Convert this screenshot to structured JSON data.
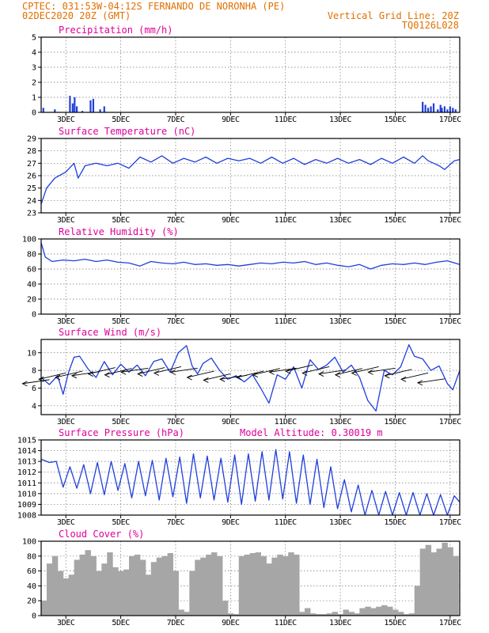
{
  "header": {
    "line1_left": "CPTEC:   031:53W-04:12S  FERNANDO DE NORONHA (PE)",
    "line2_left": "02DEC2020 20Z (GMT)",
    "line2_right": "Vertical Grid Line: 20Z",
    "line3_right": "TQ0126L028"
  },
  "colors": {
    "header": "#e07000",
    "title": "#e0009a",
    "series": "#1f3fdc",
    "cloud": "#a6a6a6"
  },
  "chart_data": [
    {
      "type": "bar",
      "title": "Precipitation (mm/h)",
      "ylim": [
        0,
        5
      ],
      "yticks": [
        0,
        1,
        2,
        3,
        4,
        5
      ],
      "xlim": [
        0,
        15.25
      ],
      "xticks": [
        0.9,
        2.9,
        4.9,
        6.9,
        8.9,
        10.9,
        12.9,
        14.9
      ],
      "xtick_labels": [
        "3DEC",
        "5DEC",
        "7DEC",
        "9DEC",
        "11DEC",
        "13DEC",
        "15DEC",
        "17DEC"
      ],
      "series": [
        {
          "color": "#1f3fdc",
          "x": [
            0.08,
            0.5,
            1.05,
            1.15,
            1.22,
            1.3,
            1.5,
            1.8,
            1.9,
            2.15,
            2.3,
            13.9,
            14.0,
            14.1,
            14.2,
            14.3,
            14.45,
            14.55,
            14.6,
            14.7,
            14.8,
            14.9,
            15.0,
            15.1
          ],
          "values": [
            0.3,
            0.2,
            1.1,
            0.6,
            1.0,
            0.4,
            0.1,
            0.8,
            0.9,
            0.2,
            0.4,
            0.7,
            0.5,
            0.3,
            0.4,
            0.6,
            0.2,
            0.5,
            0.3,
            0.4,
            0.2,
            0.4,
            0.3,
            0.2
          ]
        }
      ]
    },
    {
      "type": "line",
      "title": "Surface Temperature (nC)",
      "ylim": [
        23,
        29
      ],
      "yticks": [
        23,
        24,
        25,
        26,
        27,
        28,
        29
      ],
      "xlim": [
        0,
        15.25
      ],
      "xticks": [
        0.9,
        2.9,
        4.9,
        6.9,
        8.9,
        10.9,
        12.9,
        14.9
      ],
      "xtick_labels": [
        "3DEC",
        "5DEC",
        "7DEC",
        "9DEC",
        "11DEC",
        "13DEC",
        "15DEC",
        "17DEC"
      ],
      "series": [
        {
          "color": "#1f3fdc",
          "x": [
            0.0,
            0.2,
            0.5,
            0.9,
            1.2,
            1.35,
            1.6,
            2.0,
            2.4,
            2.8,
            3.2,
            3.6,
            4.0,
            4.4,
            4.8,
            5.2,
            5.6,
            6.0,
            6.4,
            6.8,
            7.2,
            7.6,
            8.0,
            8.4,
            8.8,
            9.2,
            9.6,
            10.0,
            10.4,
            10.8,
            11.2,
            11.6,
            12.0,
            12.4,
            12.8,
            13.2,
            13.6,
            13.9,
            14.1,
            14.3,
            14.5,
            14.7,
            14.9,
            15.05,
            15.25
          ],
          "values": [
            23.7,
            25.0,
            25.8,
            26.3,
            27.0,
            25.8,
            26.8,
            27.0,
            26.8,
            27.0,
            26.6,
            27.5,
            27.1,
            27.6,
            27.0,
            27.4,
            27.1,
            27.5,
            27.0,
            27.4,
            27.2,
            27.4,
            27.0,
            27.5,
            27.0,
            27.4,
            26.9,
            27.3,
            27.0,
            27.4,
            27.0,
            27.3,
            26.9,
            27.4,
            27.0,
            27.5,
            27.0,
            27.6,
            27.2,
            27.0,
            26.8,
            26.5,
            26.9,
            27.2,
            27.3
          ]
        }
      ]
    },
    {
      "type": "line",
      "title": "Relative Humidity (%)",
      "ylim": [
        0,
        100
      ],
      "yticks": [
        0,
        20,
        40,
        60,
        80,
        100
      ],
      "xlim": [
        0,
        15.25
      ],
      "xticks": [
        0.9,
        2.9,
        4.9,
        6.9,
        8.9,
        10.9,
        12.9,
        14.9
      ],
      "xtick_labels": [
        "3DEC",
        "5DEC",
        "7DEC",
        "9DEC",
        "11DEC",
        "13DEC",
        "15DEC",
        "17DEC"
      ],
      "series": [
        {
          "color": "#1f3fdc",
          "x": [
            0.0,
            0.15,
            0.4,
            0.8,
            1.2,
            1.6,
            2.0,
            2.4,
            2.8,
            3.2,
            3.6,
            4.0,
            4.4,
            4.8,
            5.2,
            5.6,
            6.0,
            6.4,
            6.8,
            7.2,
            7.6,
            8.0,
            8.4,
            8.8,
            9.2,
            9.6,
            10.0,
            10.4,
            10.8,
            11.2,
            11.6,
            12.0,
            12.4,
            12.8,
            13.2,
            13.6,
            14.0,
            14.4,
            14.8,
            15.25
          ],
          "values": [
            95,
            76,
            70,
            72,
            71,
            73,
            70,
            72,
            69,
            68,
            64,
            70,
            68,
            67,
            69,
            66,
            67,
            65,
            66,
            64,
            66,
            68,
            67,
            69,
            68,
            70,
            66,
            68,
            65,
            63,
            66,
            60,
            65,
            67,
            66,
            68,
            66,
            69,
            71,
            66
          ]
        }
      ]
    },
    {
      "type": "line",
      "title": "Surface Wind (m/s)",
      "ylim": [
        3,
        11.5
      ],
      "yticks": [
        4,
        6,
        8,
        10
      ],
      "xlim": [
        0,
        15.25
      ],
      "xticks": [
        0.9,
        2.9,
        4.9,
        6.9,
        8.9,
        10.9,
        12.9,
        14.9
      ],
      "xtick_labels": [
        "3DEC",
        "5DEC",
        "7DEC",
        "9DEC",
        "11DEC",
        "13DEC",
        "15DEC",
        "17DEC"
      ],
      "series": [
        {
          "color": "#1f3fdc",
          "x": [
            0.0,
            0.3,
            0.6,
            0.8,
            1.0,
            1.2,
            1.4,
            1.7,
            2.0,
            2.3,
            2.6,
            2.9,
            3.2,
            3.5,
            3.8,
            4.1,
            4.4,
            4.7,
            5.0,
            5.3,
            5.5,
            5.7,
            5.9,
            6.2,
            6.5,
            6.8,
            7.1,
            7.4,
            7.7,
            8.0,
            8.3,
            8.6,
            8.9,
            9.2,
            9.5,
            9.8,
            10.1,
            10.4,
            10.7,
            11.0,
            11.3,
            11.6,
            11.9,
            12.2,
            12.5,
            12.8,
            13.1,
            13.4,
            13.6,
            13.9,
            14.2,
            14.5,
            14.8,
            15.0,
            15.25
          ],
          "values": [
            7.2,
            6.4,
            7.4,
            5.3,
            7.8,
            9.5,
            9.6,
            8.2,
            7.2,
            9.0,
            7.5,
            8.7,
            7.8,
            8.6,
            7.4,
            9.0,
            9.3,
            7.8,
            10.0,
            10.8,
            8.5,
            7.6,
            8.8,
            9.4,
            8.0,
            7.0,
            7.4,
            6.7,
            7.5,
            6.0,
            4.3,
            7.5,
            7.0,
            8.4,
            6.0,
            9.2,
            8.1,
            8.6,
            9.5,
            7.8,
            8.6,
            7.2,
            4.6,
            3.4,
            8.0,
            7.5,
            8.4,
            10.9,
            9.6,
            9.3,
            8.0,
            8.5,
            6.5,
            5.8,
            8.0
          ]
        }
      ]
    },
    {
      "type": "line",
      "title": "Surface Pressure (hPa)",
      "annotation": "Model Altitude: 0.30019 m",
      "ylim": [
        1008,
        1015
      ],
      "yticks": [
        1008,
        1009,
        1010,
        1011,
        1012,
        1013,
        1014,
        1015
      ],
      "xlim": [
        0,
        15.25
      ],
      "xticks": [
        0.9,
        2.9,
        4.9,
        6.9,
        8.9,
        10.9,
        12.9,
        14.9
      ],
      "xtick_labels": [
        "3DEC",
        "5DEC",
        "7DEC",
        "9DEC",
        "11DEC",
        "13DEC",
        "15DEC",
        "17DEC"
      ],
      "series": [
        {
          "color": "#1f3fdc",
          "x": [
            0.0,
            0.3,
            0.55,
            0.8,
            1.05,
            1.3,
            1.55,
            1.8,
            2.05,
            2.3,
            2.55,
            2.8,
            3.05,
            3.3,
            3.55,
            3.8,
            4.05,
            4.3,
            4.55,
            4.8,
            5.05,
            5.3,
            5.55,
            5.8,
            6.05,
            6.3,
            6.55,
            6.8,
            7.05,
            7.3,
            7.55,
            7.8,
            8.05,
            8.3,
            8.55,
            8.8,
            9.05,
            9.3,
            9.55,
            9.8,
            10.05,
            10.3,
            10.55,
            10.8,
            11.05,
            11.3,
            11.55,
            11.8,
            12.05,
            12.3,
            12.55,
            12.8,
            13.05,
            13.3,
            13.55,
            13.8,
            14.05,
            14.3,
            14.55,
            14.8,
            15.05,
            15.25
          ],
          "values": [
            1013.2,
            1012.9,
            1013.0,
            1010.6,
            1012.5,
            1010.5,
            1012.7,
            1010.0,
            1012.9,
            1009.9,
            1013.0,
            1010.3,
            1012.8,
            1009.6,
            1013.0,
            1009.8,
            1013.1,
            1009.4,
            1013.3,
            1009.7,
            1013.4,
            1009.1,
            1013.7,
            1009.6,
            1013.5,
            1009.4,
            1013.3,
            1009.2,
            1013.6,
            1009.0,
            1013.7,
            1009.3,
            1013.9,
            1009.4,
            1014.1,
            1009.5,
            1013.9,
            1009.1,
            1013.6,
            1009.0,
            1013.2,
            1008.7,
            1012.5,
            1008.6,
            1011.3,
            1008.3,
            1010.8,
            1008.0,
            1010.3,
            1008.0,
            1010.2,
            1008.0,
            1010.1,
            1008.0,
            1010.1,
            1008.0,
            1010.0,
            1008.0,
            1009.9,
            1008.0,
            1009.8,
            1009.2
          ]
        }
      ]
    },
    {
      "type": "bar",
      "title": "Cloud Cover (%)",
      "ylim": [
        0,
        100
      ],
      "yticks": [
        0,
        20,
        40,
        60,
        80,
        100
      ],
      "xlim": [
        0,
        15.25
      ],
      "xticks": [
        0.9,
        2.9,
        4.9,
        6.9,
        8.9,
        10.9,
        12.9,
        14.9
      ],
      "xtick_labels": [
        "3DEC",
        "5DEC",
        "7DEC",
        "9DEC",
        "11DEC",
        "13DEC",
        "15DEC",
        "17DEC"
      ],
      "series": [
        {
          "color": "#a6a6a6",
          "x": [
            0.0,
            0.2,
            0.4,
            0.6,
            0.8,
            1.0,
            1.2,
            1.4,
            1.6,
            1.8,
            2.0,
            2.2,
            2.4,
            2.6,
            2.8,
            3.0,
            3.2,
            3.4,
            3.6,
            3.8,
            4.0,
            4.2,
            4.4,
            4.6,
            4.8,
            5.0,
            5.2,
            5.4,
            5.6,
            5.8,
            6.0,
            6.2,
            6.4,
            6.6,
            6.8,
            7.0,
            7.2,
            7.4,
            7.6,
            7.8,
            8.0,
            8.2,
            8.4,
            8.6,
            8.8,
            9.0,
            9.2,
            9.4,
            9.6,
            9.8,
            10.0,
            10.2,
            10.4,
            10.6,
            10.8,
            11.0,
            11.2,
            11.4,
            11.6,
            11.8,
            12.0,
            12.2,
            12.4,
            12.6,
            12.8,
            13.0,
            13.2,
            13.4,
            13.6,
            13.8,
            14.0,
            14.2,
            14.4,
            14.6,
            14.8,
            15.0
          ],
          "values": [
            20,
            70,
            80,
            60,
            50,
            55,
            75,
            82,
            88,
            80,
            60,
            70,
            85,
            65,
            60,
            62,
            80,
            82,
            75,
            55,
            72,
            78,
            80,
            84,
            60,
            8,
            5,
            60,
            75,
            78,
            82,
            85,
            80,
            20,
            3,
            2,
            80,
            82,
            84,
            85,
            80,
            70,
            78,
            82,
            80,
            85,
            82,
            5,
            10,
            3,
            2,
            2,
            3,
            5,
            2,
            8,
            5,
            3,
            10,
            12,
            10,
            12,
            14,
            12,
            8,
            5,
            2,
            3,
            40,
            90,
            95,
            85,
            90,
            98,
            92,
            80
          ]
        }
      ]
    }
  ],
  "panel_extras": {
    "altitude_note": "Model Altitude: 0.30019 m"
  }
}
